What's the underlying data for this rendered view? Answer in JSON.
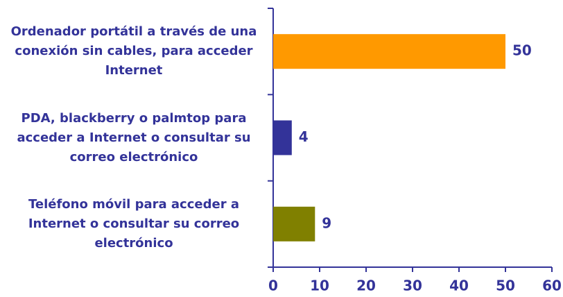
{
  "chart_data": {
    "type": "barh",
    "categories": [
      "Ordenador portátil a través de una conexión sin cables, para acceder Internet",
      "PDA, blackberry o palmtop para acceder a Internet o consultar su correo electrónico",
      "Teléfono móvil para acceder a Internet o consultar su correo electrónico"
    ],
    "values": [
      50,
      4,
      9
    ],
    "colors": [
      "#ff9900",
      "#333399",
      "#808000"
    ],
    "xlim": [
      0,
      60
    ],
    "xticks": [
      0,
      10,
      20,
      30,
      40,
      50,
      60
    ],
    "grid": false
  }
}
